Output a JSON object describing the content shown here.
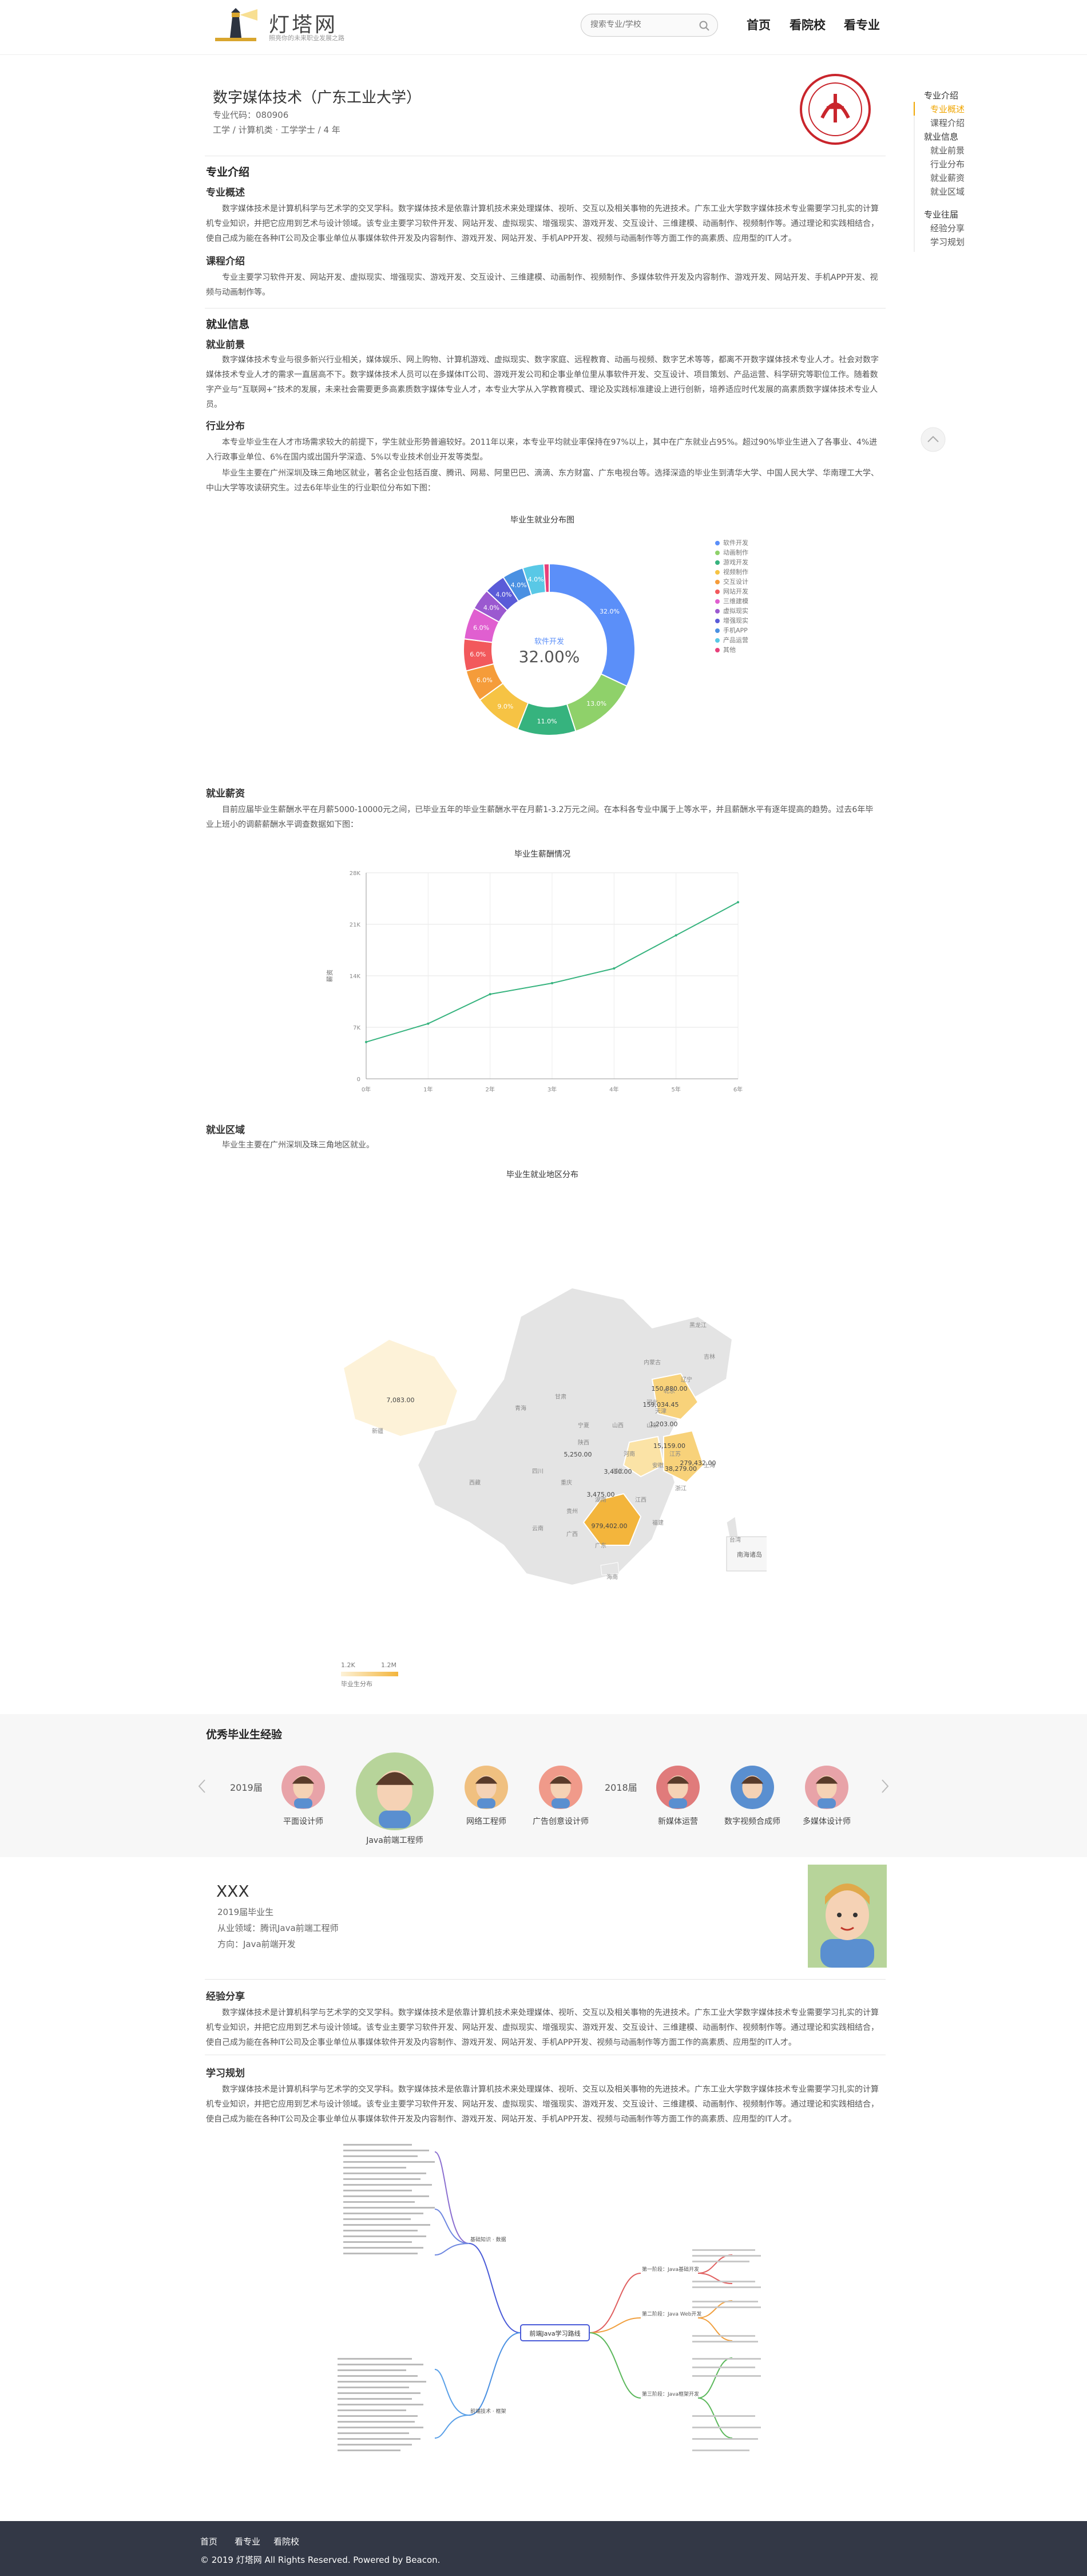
{
  "header": {
    "logo_text": "灯塔网",
    "logo_sub": "照亮你的未来职业发展之路",
    "search_placeholder": "搜索专业/学校",
    "nav": [
      "首页",
      "看院校",
      "看专业"
    ]
  },
  "major": {
    "title": "数字媒体技术（广东工业大学）",
    "code": "专业代码：080906",
    "category": "工学 / 计算机类 · 工学学士 / 4 年"
  },
  "rightnav": {
    "items": [
      {
        "label": "专业介绍",
        "type": "head"
      },
      {
        "label": "专业概述",
        "type": "active"
      },
      {
        "label": "课程介绍",
        "type": "item"
      },
      {
        "label": "就业信息",
        "type": "head"
      },
      {
        "label": "就业前景",
        "type": "item"
      },
      {
        "label": "行业分布",
        "type": "item"
      },
      {
        "label": "就业薪资",
        "type": "item"
      },
      {
        "label": "就业区域",
        "type": "item"
      },
      {
        "label": "专业往届",
        "type": "head"
      },
      {
        "label": "经验分享",
        "type": "item"
      },
      {
        "label": "学习规划",
        "type": "item"
      }
    ]
  },
  "intro": {
    "heading": "专业介绍",
    "overview_title": "专业概述",
    "overview_text": "数字媒体技术是计算机科学与艺术学的交叉学科。数字媒体技术是依靠计算机技术来处理媒体、视听、交互以及相关事物的先进技术。广东工业大学数字媒体技术专业需要学习扎实的计算机专业知识，并把它应用到艺术与设计领域。该专业主要学习软件开发、网站开发、虚拟现实、增强现实、游戏开发、交互设计、三维建模、动画制作、视频制作等。通过理论和实践相结合，使自己成为能在各种IT公司及企事业单位从事媒体软件开发及内容制作、游戏开发、网站开发、手机APP开发、视频与动画制作等方面工作的高素质、应用型的IT人才。",
    "course_title": "课程介绍",
    "course_text": "专业主要学习软件开发、网站开发、虚拟现实、增强现实、游戏开发、交互设计、三维建模、动画制作、视频制作、多媒体软件开发及内容制作、游戏开发、网站开发、手机APP开发、视频与动画制作等。"
  },
  "employment": {
    "heading": "就业信息",
    "prospect_title": "就业前景",
    "prospect_text": "数字媒体技术专业与很多新兴行业相关，媒体娱乐、网上购物、计算机游戏、虚拟现实、数字家庭、远程教育、动画与视频、数字艺术等等，都离不开数字媒体技术专业人才。社会对数字媒体技术专业人才的需求一直居高不下。数字媒体技术人员可以在多媒体IT公司、游戏开发公司和企事业单位里从事软件开发、交互设计、项目策划、产品运营、科学研究等职位工作。随着数字产业与“互联网+”技术的发展，未来社会需要更多高素质数字媒体专业人才，本专业大学从入学教育模式、理论及实践标准建设上进行创新，培养适应时代发展的高素质数字媒体技术专业人员。",
    "industry_title": "行业分布",
    "industry_text_1": "本专业毕业生在人才市场需求较大的前提下，学生就业形势普遍较好。2011年以来，本专业平均就业率保持在97%以上，其中在广东就业占95%。超过90%毕业生进入了各事业、4%进入行政事业单位、6%在国内或出国升学深造、5%以专业技术创业开发等类型。",
    "industry_text_2": "毕业生主要在广州深圳及珠三角地区就业，著名企业包括百度、腾讯、网易、阿里巴巴、滴滴、东方财富、广东电视台等。选择深造的毕业生到清华大学、中国人民大学、华南理工大学、中山大学等攻读研究生。过去6年毕业生的行业职位分布如下图：",
    "salary_title": "就业薪资",
    "salary_text": "目前应届毕业生薪酬水平在月薪5000-10000元之间，已毕业五年的毕业生薪酬水平在月薪1-3.2万元之间。在本科各专业中属于上等水平，并且薪酬水平有逐年提高的趋势。过去6年毕业上班小的调薪薪酬水平调查数据如下图：",
    "region_title": "就业区域",
    "region_text": "毕业生主要在广州深圳及珠三角地区就业。"
  },
  "pie_chart": {
    "title": "毕业生就业分布图",
    "center_label": "软件开发",
    "center_value": "32.00%",
    "colors": [
      "#5b8ff9",
      "#8fd16a",
      "#36b37e",
      "#f6c344",
      "#f59c3a",
      "#f2595c",
      "#e05fd0",
      "#9b59d0",
      "#5a5bd8",
      "#4a90e2",
      "#59c8e6",
      "#e8417a"
    ]
  },
  "chart_data": [
    {
      "type": "pie",
      "title": "毕业生就业分布图",
      "categories": [
        "软件开发",
        "动画制作",
        "游戏开发",
        "视频制作",
        "交互设计",
        "网站开发",
        "三维建模",
        "虚拟现实",
        "增强现实",
        "手机APP",
        "产品运营",
        "其他"
      ],
      "values": [
        32.0,
        13.0,
        11.0,
        9.0,
        6.0,
        6.0,
        6.0,
        4.0,
        4.0,
        4.0,
        4.0,
        1.0
      ]
    },
    {
      "type": "line",
      "title": "毕业生薪酬情况",
      "x": [
        "0年",
        "1年",
        "2年",
        "3年",
        "4年",
        "5年",
        "6年"
      ],
      "values": [
        5000,
        7500,
        11500,
        13000,
        15000,
        19500,
        24000
      ],
      "ylim": [
        0,
        28000
      ],
      "y_ticks": [
        "0",
        "7K",
        "14K",
        "21K",
        "28K"
      ],
      "ylabel": "薪资",
      "grid": true,
      "color": "#36b37e"
    },
    {
      "type": "map",
      "title": "毕业生就业地区分布",
      "values": [
        {
          "name": "新疆",
          "value": "7,083.00"
        },
        {
          "name": "广东",
          "value": "979,402.00"
        },
        {
          "name": "北京",
          "value": "150,880.00"
        },
        {
          "name": "天津",
          "value": "159,034.45"
        },
        {
          "name": "山东",
          "value": "1,203.00"
        },
        {
          "name": "陕西",
          "value": "5,250.00"
        },
        {
          "name": "江苏",
          "value": "15,159.00"
        },
        {
          "name": "浙江",
          "value": "38,279.00"
        },
        {
          "name": "湖北",
          "value": "3,450.00"
        },
        {
          "name": "湖南",
          "value": "3,475.00"
        },
        {
          "name": "上海",
          "value": "279,432.00"
        }
      ],
      "visual_range": [
        "1.2K",
        "1.2M"
      ],
      "visual_label": "毕业生分布"
    }
  ],
  "line_chart": {
    "title": "毕业生薪酬情况"
  },
  "map": {
    "title": "毕业生就业地区分布",
    "provinces": [
      "黑龙江",
      "吉林",
      "辽宁",
      "内蒙古",
      "河北",
      "北京",
      "天津",
      "山西",
      "山东",
      "宁夏",
      "甘肃",
      "青海",
      "新疆",
      "西藏",
      "四川",
      "重庆",
      "贵州",
      "云南",
      "广西",
      "广东",
      "海南",
      "湖南",
      "湖北",
      "河南",
      "安徽",
      "江苏",
      "上海",
      "浙江",
      "江西",
      "福建",
      "台湾",
      "陕西"
    ],
    "south_sea": "南海诸岛"
  },
  "graduates": {
    "heading": "优秀毕业生经验",
    "years": [
      "2019届",
      "2018届"
    ],
    "people": [
      {
        "label": "平面设计师",
        "color": "#e8a3a8"
      },
      {
        "label": "Java前端工程师",
        "color": "#b7d49a"
      },
      {
        "label": "网络工程师",
        "color": "#f0c080"
      },
      {
        "label": "广告创意设计师",
        "color": "#f09a8a"
      },
      {
        "label": "新媒体运营",
        "color": "#e07b7b"
      },
      {
        "label": "数字视频合成师",
        "color": "#5a8fd0"
      },
      {
        "label": "多媒体设计师",
        "color": "#e8a3a8"
      }
    ]
  },
  "profile": {
    "name": "XXX",
    "line1": "2019届毕业生",
    "line2": "从业领域：腾讯Java前端工程师",
    "line3": "方向：Java前端开发"
  },
  "experience": {
    "title": "经验分享",
    "text": "数字媒体技术是计算机科学与艺术学的交叉学科。数字媒体技术是依靠计算机技术来处理媒体、视听、交互以及相关事物的先进技术。广东工业大学数字媒体技术专业需要学习扎实的计算机专业知识，并把它应用到艺术与设计领域。该专业主要学习软件开发、网站开发、虚拟现实、增强现实、游戏开发、交互设计、三维建模、动画制作、视频制作等。通过理论和实践相结合，使自己成为能在各种IT公司及企事业单位从事媒体软件开发及内容制作、游戏开发、网站开发、手机APP开发、视频与动画制作等方面工作的高素质、应用型的IT人才。"
  },
  "plan": {
    "title": "学习规划",
    "text": "数字媒体技术是计算机科学与艺术学的交叉学科。数字媒体技术是依靠计算机技术来处理媒体、视听、交互以及相关事物的先进技术。广东工业大学数字媒体技术专业需要学习扎实的计算机专业知识，并把它应用到艺术与设计领域。该专业主要学习软件开发、网站开发、虚拟现实、增强现实、游戏开发、交互设计、三维建模、动画制作、视频制作等。通过理论和实践相结合，使自己成为能在各种IT公司及企事业单位从事媒体软件开发及内容制作、游戏开发、网站开发、手机APP开发、视频与动画制作等方面工作的高素质、应用型的IT人才。",
    "mindmap_center": "前端Java学习路线",
    "mindmap_left": [
      "基础知识 · 数据",
      "前端技术 · 框架"
    ],
    "mindmap_right": [
      "第一阶段：Java基础开发",
      "第二阶段：Java Web开发",
      "第三阶段：Java框架开发"
    ]
  },
  "footer": {
    "links": [
      "首页",
      "看专业",
      "看院校"
    ],
    "copyright": "© 2019 灯塔网 All Rights Reserved. Powered by Beacon."
  }
}
